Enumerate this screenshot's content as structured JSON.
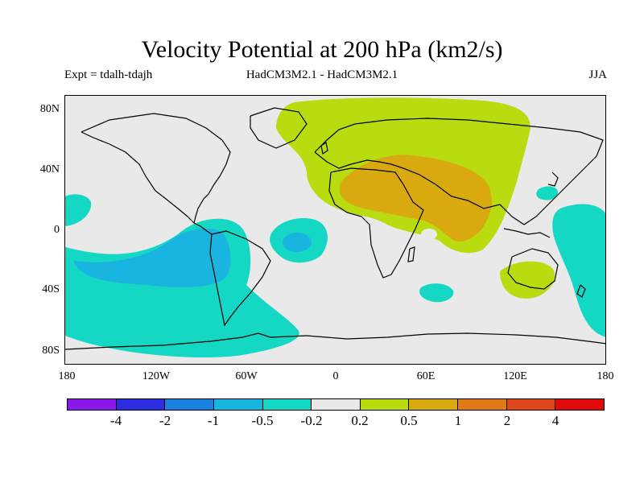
{
  "header": {
    "title": "Velocity Potential at 200 hPa (km2/s)",
    "experiment": "Expt = tdalh-tdajh",
    "model_comparison": "HadCM3M2.1 - HadCM3M2.1",
    "season": "JJA"
  },
  "axes": {
    "latitude_labels": [
      "80N",
      "40N",
      "0",
      "40S",
      "80S"
    ],
    "longitude_labels": [
      "180",
      "120W",
      "60W",
      "0",
      "60E",
      "120E",
      "180"
    ]
  },
  "colorbar": {
    "labels": [
      "-4",
      "-2",
      "-1",
      "-0.5",
      "-0.2",
      "0.2",
      "0.5",
      "1",
      "2",
      "4"
    ],
    "colors": [
      "#8a18e8",
      "#2c2ce0",
      "#1a80e0",
      "#1ab4e0",
      "#14d8c4",
      "#e9e9e9",
      "#b8dc10",
      "#d8aa10",
      "#e07a14",
      "#e0461c",
      "#e00a0a"
    ]
  },
  "palette": {
    "background": "#e9e9e9",
    "coast": "#000000"
  }
}
